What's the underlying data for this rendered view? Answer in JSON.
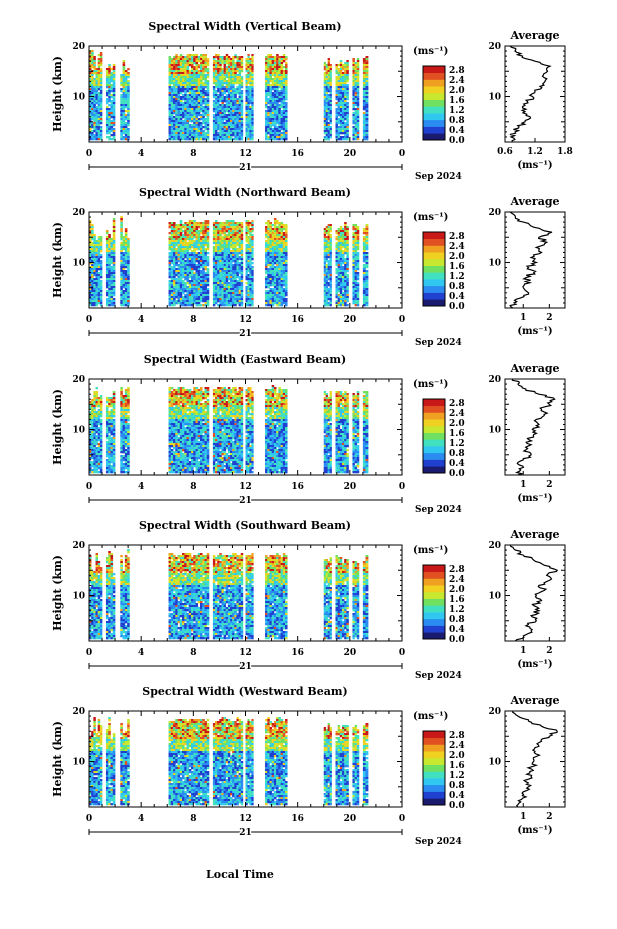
{
  "chart_data": [
    {
      "type": "heatmap",
      "title": "Spectral Width (Vertical Beam)",
      "ylabel": "Height (km)",
      "yticks": [
        "20",
        "10"
      ],
      "xticks": [
        "0",
        "4",
        "8",
        "12",
        "16",
        "20",
        "0"
      ],
      "date_day": "21",
      "date_label": "Sep 2024",
      "unit": "(ms⁻¹)",
      "colorbar_ticks": [
        "2.8",
        "2.4",
        "2.0",
        "1.6",
        "1.2",
        "0.8",
        "0.4",
        "0.0"
      ],
      "profile": {
        "title": "Average",
        "yticks": [
          "20",
          "10"
        ],
        "xticks": [
          "0.6",
          "1.2",
          "1.8"
        ],
        "xlim": [
          0.6,
          1.8
        ],
        "ylim": [
          1,
          20
        ],
        "unit": "(ms⁻¹)",
        "values": [
          [
            1,
            0.75
          ],
          [
            2,
            0.72
          ],
          [
            3,
            0.8
          ],
          [
            4,
            0.88
          ],
          [
            5,
            1.0
          ],
          [
            6,
            1.1
          ],
          [
            7,
            1.0
          ],
          [
            8,
            0.95
          ],
          [
            9,
            1.05
          ],
          [
            10,
            1.15
          ],
          [
            11,
            1.2
          ],
          [
            12,
            1.3
          ],
          [
            13,
            1.4
          ],
          [
            14,
            1.35
          ],
          [
            15,
            1.45
          ],
          [
            16,
            1.5
          ],
          [
            17,
            1.2
          ],
          [
            18,
            0.95
          ],
          [
            19,
            0.8
          ],
          [
            20,
            0.7
          ]
        ]
      }
    },
    {
      "type": "heatmap",
      "title": "Spectral Width (Northward Beam)",
      "ylabel": "Height (km)",
      "yticks": [
        "20",
        "10"
      ],
      "xticks": [
        "0",
        "4",
        "8",
        "12",
        "16",
        "20",
        "0"
      ],
      "date_day": "21",
      "date_label": "Sep 2024",
      "unit": "(ms⁻¹)",
      "colorbar_ticks": [
        "2.8",
        "2.4",
        "2.0",
        "1.6",
        "1.2",
        "0.8",
        "0.4",
        "0.0"
      ],
      "profile": {
        "title": "Average",
        "yticks": [
          "20",
          "10"
        ],
        "xticks": [
          "1",
          "2"
        ],
        "xlim": [
          0.3,
          2.6
        ],
        "ylim": [
          1,
          20
        ],
        "unit": "(ms⁻¹)",
        "values": [
          [
            1,
            0.6
          ],
          [
            2,
            0.65
          ],
          [
            3,
            0.9
          ],
          [
            4,
            1.2
          ],
          [
            5,
            1.0
          ],
          [
            6,
            1.25
          ],
          [
            7,
            1.1
          ],
          [
            8,
            1.4
          ],
          [
            9,
            1.2
          ],
          [
            10,
            1.5
          ],
          [
            11,
            1.3
          ],
          [
            12,
            1.7
          ],
          [
            13,
            1.5
          ],
          [
            14,
            1.9
          ],
          [
            15,
            1.6
          ],
          [
            16,
            2.1
          ],
          [
            17,
            1.4
          ],
          [
            18,
            1.0
          ],
          [
            19,
            0.7
          ],
          [
            20,
            0.5
          ]
        ]
      }
    },
    {
      "type": "heatmap",
      "title": "Spectral Width (Eastward Beam)",
      "ylabel": "Height (km)",
      "yticks": [
        "20",
        "10"
      ],
      "xticks": [
        "0",
        "4",
        "8",
        "12",
        "16",
        "20",
        "0"
      ],
      "date_day": "21",
      "date_label": "Sep 2024",
      "unit": "(ms⁻¹)",
      "colorbar_ticks": [
        "2.8",
        "2.4",
        "2.0",
        "1.6",
        "1.2",
        "0.8",
        "0.4",
        "0.0"
      ],
      "profile": {
        "title": "Average",
        "yticks": [
          "20",
          "10"
        ],
        "xticks": [
          "1",
          "2"
        ],
        "xlim": [
          0.3,
          2.6
        ],
        "ylim": [
          1,
          20
        ],
        "unit": "(ms⁻¹)",
        "values": [
          [
            1,
            0.8
          ],
          [
            2,
            0.9
          ],
          [
            3,
            0.85
          ],
          [
            4,
            1.0
          ],
          [
            5,
            1.3
          ],
          [
            6,
            1.1
          ],
          [
            7,
            1.3
          ],
          [
            8,
            1.2
          ],
          [
            9,
            1.4
          ],
          [
            10,
            1.35
          ],
          [
            11,
            1.6
          ],
          [
            12,
            1.5
          ],
          [
            13,
            1.8
          ],
          [
            14,
            1.7
          ],
          [
            15,
            2.0
          ],
          [
            16,
            2.2
          ],
          [
            17,
            1.6
          ],
          [
            18,
            1.1
          ],
          [
            19,
            0.8
          ],
          [
            20,
            0.6
          ]
        ]
      }
    },
    {
      "type": "heatmap",
      "title": "Spectral Width (Southward Beam)",
      "ylabel": "Height (km)",
      "yticks": [
        "20",
        "10"
      ],
      "xticks": [
        "0",
        "4",
        "8",
        "12",
        "16",
        "20",
        "0"
      ],
      "date_day": "21",
      "date_label": "Sep 2024",
      "unit": "(ms⁻¹)",
      "colorbar_ticks": [
        "2.8",
        "2.4",
        "2.0",
        "1.6",
        "1.2",
        "0.8",
        "0.4",
        "0.0"
      ],
      "profile": {
        "title": "Average",
        "yticks": [
          "20",
          "10"
        ],
        "xticks": [
          "1",
          "2"
        ],
        "xlim": [
          0.3,
          2.6
        ],
        "ylim": [
          1,
          20
        ],
        "unit": "(ms⁻¹)",
        "values": [
          [
            1,
            0.7
          ],
          [
            2,
            1.0
          ],
          [
            3,
            1.3
          ],
          [
            4,
            1.1
          ],
          [
            5,
            1.5
          ],
          [
            6,
            1.3
          ],
          [
            7,
            1.6
          ],
          [
            8,
            1.4
          ],
          [
            9,
            1.7
          ],
          [
            10,
            1.5
          ],
          [
            11,
            1.8
          ],
          [
            12,
            1.6
          ],
          [
            13,
            2.0
          ],
          [
            14,
            1.9
          ],
          [
            15,
            2.3
          ],
          [
            16,
            1.8
          ],
          [
            17,
            1.4
          ],
          [
            18,
            1.0
          ],
          [
            19,
            0.7
          ],
          [
            20,
            0.5
          ]
        ]
      }
    },
    {
      "type": "heatmap",
      "title": "Spectral Width (Westward Beam)",
      "ylabel": "Height (km)",
      "yticks": [
        "20",
        "10"
      ],
      "xticks": [
        "0",
        "4",
        "8",
        "12",
        "16",
        "20",
        "0"
      ],
      "date_day": "21",
      "date_label": "Sep 2024",
      "unit": "(ms⁻¹)",
      "colorbar_ticks": [
        "2.8",
        "2.4",
        "2.0",
        "1.6",
        "1.2",
        "0.8",
        "0.4",
        "0.0"
      ],
      "profile": {
        "title": "Average",
        "yticks": [
          "20",
          "10"
        ],
        "xticks": [
          "1",
          "2"
        ],
        "xlim": [
          0.3,
          2.6
        ],
        "ylim": [
          1,
          20
        ],
        "unit": "(ms⁻¹)",
        "values": [
          [
            1,
            0.8
          ],
          [
            2,
            0.9
          ],
          [
            3,
            1.1
          ],
          [
            4,
            1.0
          ],
          [
            5,
            1.2
          ],
          [
            6,
            1.1
          ],
          [
            7,
            1.3
          ],
          [
            8,
            1.25
          ],
          [
            9,
            1.35
          ],
          [
            10,
            1.4
          ],
          [
            11,
            1.5
          ],
          [
            12,
            1.45
          ],
          [
            13,
            1.6
          ],
          [
            14,
            1.7
          ],
          [
            15,
            2.0
          ],
          [
            16,
            2.3
          ],
          [
            17,
            1.7
          ],
          [
            18,
            1.2
          ],
          [
            19,
            0.8
          ],
          [
            20,
            0.6
          ]
        ]
      }
    }
  ],
  "footer": {
    "xlabel": "Local Time"
  },
  "colors": {
    "colormap": [
      "#1a1a6e",
      "#2040d0",
      "#2a8cf0",
      "#30c8f0",
      "#40e0c0",
      "#70e060",
      "#c8e830",
      "#f0d020",
      "#f0a020",
      "#e05020",
      "#c81818"
    ]
  }
}
